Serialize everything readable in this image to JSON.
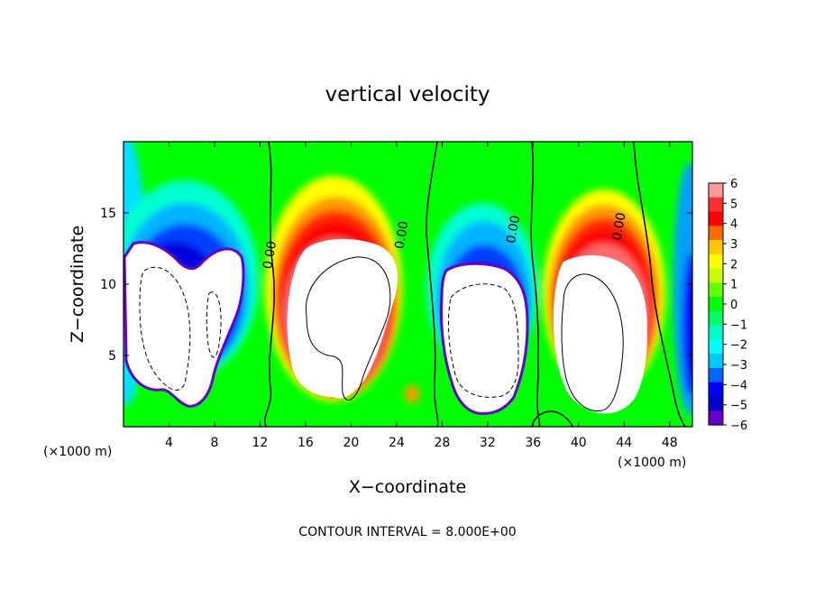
{
  "chart_data": {
    "type": "heatmap",
    "title": "vertical velocity",
    "xlabel": "X−coordinate",
    "ylabel": "Z−coordinate",
    "x_unit_label": "(×1000 m)",
    "x_unit_label_right": "(×1000 m)",
    "xlim": [
      0,
      50
    ],
    "ylim": [
      0,
      20
    ],
    "x_ticks": [
      4,
      8,
      12,
      16,
      20,
      24,
      28,
      32,
      36,
      40,
      44,
      48
    ],
    "y_ticks": [
      5,
      10,
      15
    ],
    "footnote": "CONTOUR INTERVAL = 8.000E+00",
    "colorbar": {
      "range": [
        -6,
        6
      ],
      "ticks": [
        6,
        5,
        4,
        3,
        2,
        1,
        0,
        -1,
        -2,
        -3,
        -4,
        -5,
        -6
      ],
      "tick_labels": [
        "6",
        "5",
        "4",
        "3",
        "2",
        "1",
        "0",
        "−1",
        "−2",
        "−3",
        "−4",
        "−5",
        "−6"
      ],
      "colors": [
        "#ff9a9a",
        "#ff3030",
        "#ff0000",
        "#ff6a00",
        "#ffc800",
        "#ffff00",
        "#c8ff00",
        "#64ff00",
        "#00ff00",
        "#00ff64",
        "#00ffc8",
        "#00ffff",
        "#00c8ff",
        "#0064ff",
        "#0000ff",
        "#0000c8",
        "#6400c8"
      ],
      "out_of_range": "#ffffff"
    },
    "contour_labels": [
      "0.00",
      "0.00",
      "0.00",
      "0.00"
    ],
    "features": [
      {
        "kind": "downdraft",
        "x": [
          1,
          11
        ],
        "z": [
          1,
          12
        ],
        "peak": -6
      },
      {
        "kind": "updraft",
        "x": [
          13,
          24
        ],
        "z": [
          1,
          16
        ],
        "peak": 6
      },
      {
        "kind": "downdraft",
        "x": [
          26,
          35
        ],
        "z": [
          1,
          12
        ],
        "peak": -6
      },
      {
        "kind": "updraft",
        "x": [
          37,
          46
        ],
        "z": [
          1,
          15
        ],
        "peak": 6
      }
    ]
  }
}
